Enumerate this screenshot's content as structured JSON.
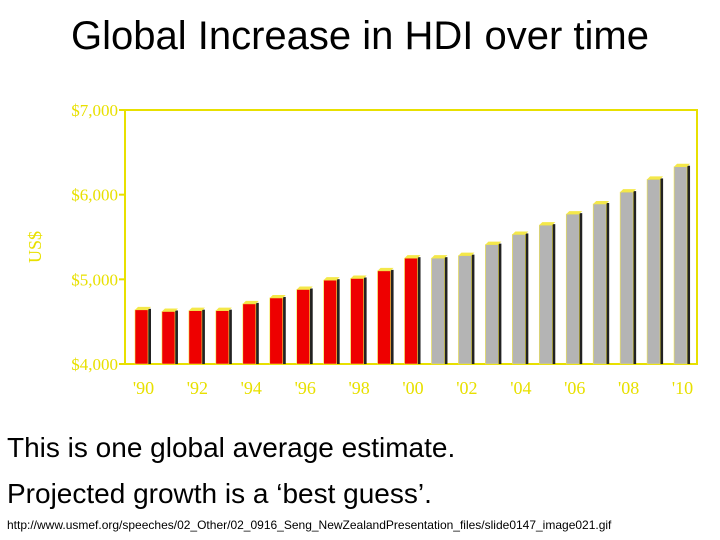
{
  "title": "Global Increase in HDI over time",
  "notes": {
    "line1": "This is one global average estimate.",
    "line2": "Projected growth is a ‘best guess’."
  },
  "source": "http://www.usmef.org/speeches/02_Other/02_0916_Seng_NewZealandPresentation_files/slide0147_image021.gif",
  "colors": {
    "axis": "#e8e000",
    "actual": "#ee0000",
    "projected": "#b4b4b4",
    "bar_shadow": "#222222",
    "bar_top": "#f4e84a"
  },
  "chart_data": {
    "type": "bar",
    "title": "Global Increase in HDI over time",
    "ylabel": "US$",
    "xlabel": "",
    "ylim": [
      4000,
      7000
    ],
    "yticks": [
      4000,
      5000,
      6000,
      7000
    ],
    "ytick_labels": [
      "$4,000",
      "$5,000",
      "$6,000",
      "$7,000"
    ],
    "xtick_labels": [
      "'90",
      "'92",
      "'94",
      "'96",
      "'98",
      "'00",
      "'02",
      "'04",
      "'06",
      "'08",
      "'10"
    ],
    "grid": false,
    "categories": [
      "1990",
      "1991",
      "1992",
      "1993",
      "1994",
      "1995",
      "1996",
      "1997",
      "1998",
      "1999",
      "2000",
      "2001",
      "2002",
      "2003",
      "2004",
      "2005",
      "2006",
      "2007",
      "2008",
      "2009",
      "2010"
    ],
    "series": [
      {
        "status": "actual",
        "values": [
          4640,
          4620,
          4630,
          4630,
          4710,
          4780,
          4880,
          4990,
          5010,
          5100,
          5250,
          null,
          null,
          null,
          null,
          null,
          null,
          null,
          null,
          null,
          null
        ]
      },
      {
        "status": "projected",
        "values": [
          null,
          null,
          null,
          null,
          null,
          null,
          null,
          null,
          null,
          null,
          null,
          5250,
          5280,
          5410,
          5530,
          5640,
          5770,
          5890,
          6030,
          6180,
          6330
        ]
      }
    ]
  }
}
